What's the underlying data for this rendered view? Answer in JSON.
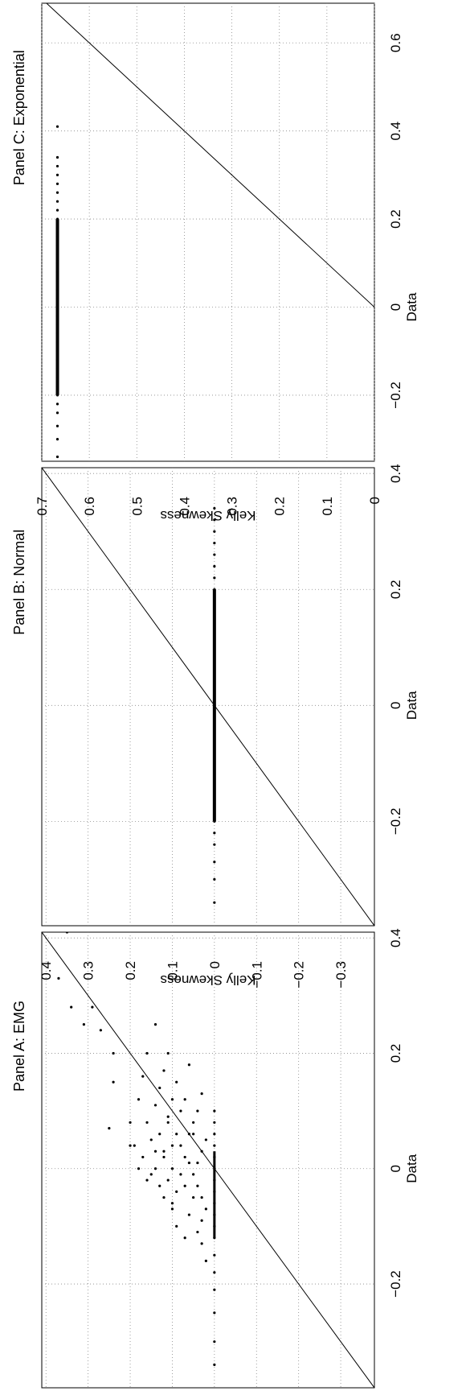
{
  "chart_data": [
    {
      "type": "scatter",
      "title": "Panel A: EMG",
      "xlabel": "Data",
      "ylabel": "Kelly Skewness",
      "xlim": [
        -0.38,
        0.41
      ],
      "ylim": [
        -0.38,
        0.41
      ],
      "x_ticks": [
        -0.2,
        0,
        0.2,
        0.4
      ],
      "y_ticks": [
        -0.3,
        -0.2,
        -0.1,
        0,
        0.1,
        0.2,
        0.3,
        0.4
      ],
      "x_tick_labels": [
        "−0.2",
        "0",
        "0.2",
        "0.4"
      ],
      "y_tick_labels": [
        "−0.3",
        "−0.2",
        "−0.1",
        "0",
        "0.1",
        "0.2",
        "0.3",
        "0.4"
      ],
      "grid": true,
      "reference_line": "y = x",
      "points_x": [
        -0.34,
        -0.3,
        -0.25,
        -0.21,
        -0.18,
        -0.15,
        -0.12,
        -0.1,
        -0.08,
        -0.06,
        -0.04,
        -0.02,
        0.0,
        0.02,
        0.04,
        0.06,
        0.08,
        0.1,
        -0.16,
        -0.13,
        -0.11,
        -0.09,
        -0.07,
        -0.05,
        -0.03,
        -0.01,
        0.01,
        0.03,
        0.05,
        -0.12,
        -0.08,
        -0.05,
        -0.03,
        -0.01,
        0.01,
        0.02,
        0.04,
        0.06,
        0.08,
        -0.06,
        -0.04,
        -0.02,
        0.0,
        0.02,
        0.04,
        0.06,
        0.08,
        0.1,
        0.12,
        -0.03,
        0.0,
        0.03,
        0.06,
        0.09,
        0.12,
        0.15,
        -0.02,
        0.02,
        0.05,
        0.08,
        0.11,
        0.14,
        0.17,
        0.2,
        0.04,
        0.08,
        0.12,
        0.16,
        0.2,
        0.25,
        0.41,
        0.33,
        0.28,
        0.25,
        0.28,
        0.24,
        0.2,
        0.15,
        0.07,
        0.04,
        0.0,
        -0.1,
        -0.07,
        -0.05,
        -0.01,
        0.03,
        0.06,
        0.1,
        0.13,
        0.18
      ],
      "points_y": [
        0.0,
        0.0,
        0.0,
        0.0,
        0.0,
        0.0,
        0.0,
        0.0,
        0.0,
        0.0,
        0.0,
        0.0,
        0.0,
        0.0,
        0.0,
        0.0,
        0.0,
        0.0,
        0.02,
        0.03,
        0.04,
        0.03,
        0.02,
        0.03,
        0.04,
        0.05,
        0.04,
        0.03,
        0.02,
        0.07,
        0.06,
        0.05,
        0.07,
        0.08,
        0.06,
        0.07,
        0.08,
        0.06,
        0.05,
        0.1,
        0.09,
        0.11,
        0.1,
        0.12,
        0.1,
        0.09,
        0.11,
        0.08,
        0.07,
        0.13,
        0.14,
        0.12,
        0.13,
        0.11,
        0.1,
        0.09,
        0.16,
        0.17,
        0.15,
        0.16,
        0.14,
        0.13,
        0.12,
        0.11,
        0.19,
        0.2,
        0.18,
        0.17,
        0.16,
        0.14,
        0.35,
        0.37,
        0.34,
        0.31,
        0.29,
        0.27,
        0.24,
        0.24,
        0.25,
        0.2,
        0.18,
        0.09,
        0.1,
        0.12,
        0.15,
        0.14,
        0.05,
        0.04,
        0.03,
        0.06
      ]
    },
    {
      "type": "scatter",
      "title": "Panel B: Normal",
      "xlabel": "Data",
      "ylabel": "Kelly Skewness",
      "xlim": [
        -0.38,
        0.41
      ],
      "ylim": [
        -0.38,
        0.41
      ],
      "x_ticks": [
        -0.2,
        0,
        0.2,
        0.4
      ],
      "y_ticks": [
        -0.3,
        -0.2,
        -0.1,
        0,
        0.1,
        0.2,
        0.3,
        0.4
      ],
      "x_tick_labels": [
        "−0.2",
        "0",
        "0.2",
        "0.4"
      ],
      "y_tick_labels": [
        "−0.3",
        "−0.2",
        "−0.1",
        "0",
        "0.1",
        "0.2",
        "0.3",
        "0.4"
      ],
      "grid": true,
      "reference_line": "y = x",
      "points_x": [
        -0.34,
        -0.3,
        -0.27,
        -0.24,
        -0.22,
        -0.2,
        -0.18,
        -0.16,
        -0.14,
        -0.12,
        -0.1,
        -0.08,
        -0.06,
        -0.04,
        -0.02,
        0.0,
        0.02,
        0.04,
        0.06,
        0.08,
        0.1,
        0.12,
        0.14,
        0.16,
        0.18,
        0.2,
        0.22,
        0.24,
        0.26,
        0.28,
        0.3,
        0.32,
        0.34
      ],
      "points_y": [
        0,
        0,
        0,
        0,
        0,
        0,
        0,
        0,
        0,
        0,
        0,
        0,
        0,
        0,
        0,
        0,
        0,
        0,
        0,
        0,
        0,
        0,
        0,
        0,
        0,
        0,
        0,
        0,
        0,
        0,
        0,
        0,
        0
      ]
    },
    {
      "type": "scatter",
      "title": "Panel C: Exponential",
      "xlabel": "Data",
      "ylabel": "Kelly Skewness",
      "xlim": [
        -0.35,
        0.69
      ],
      "ylim": [
        0,
        0.7
      ],
      "x_ticks": [
        -0.2,
        0,
        0.2,
        0.4,
        0.6
      ],
      "y_ticks": [
        0,
        0.1,
        0.2,
        0.3,
        0.4,
        0.5,
        0.6,
        0.7
      ],
      "x_tick_labels": [
        "−0.2",
        "0",
        "0.2",
        "0.4",
        "0.6"
      ],
      "y_tick_labels": [
        "0",
        "0.1",
        "0.2",
        "0.3",
        "0.4",
        "0.5",
        "0.6",
        "0.7"
      ],
      "grid": true,
      "reference_line": "y = x",
      "points_x": [
        -0.34,
        -0.3,
        -0.27,
        -0.24,
        -0.22,
        -0.2,
        -0.18,
        -0.16,
        -0.14,
        -0.12,
        -0.1,
        -0.08,
        -0.06,
        -0.04,
        -0.02,
        0.0,
        0.02,
        0.04,
        0.06,
        0.08,
        0.1,
        0.12,
        0.14,
        0.16,
        0.18,
        0.2,
        0.22,
        0.24,
        0.26,
        0.28,
        0.3,
        0.32,
        0.34,
        0.41
      ],
      "points_y": [
        0.667,
        0.667,
        0.667,
        0.667,
        0.667,
        0.667,
        0.667,
        0.667,
        0.667,
        0.667,
        0.667,
        0.667,
        0.667,
        0.667,
        0.667,
        0.667,
        0.667,
        0.667,
        0.667,
        0.667,
        0.667,
        0.667,
        0.667,
        0.667,
        0.667,
        0.667,
        0.667,
        0.667,
        0.667,
        0.667,
        0.667,
        0.667,
        0.667,
        0.667
      ]
    }
  ]
}
